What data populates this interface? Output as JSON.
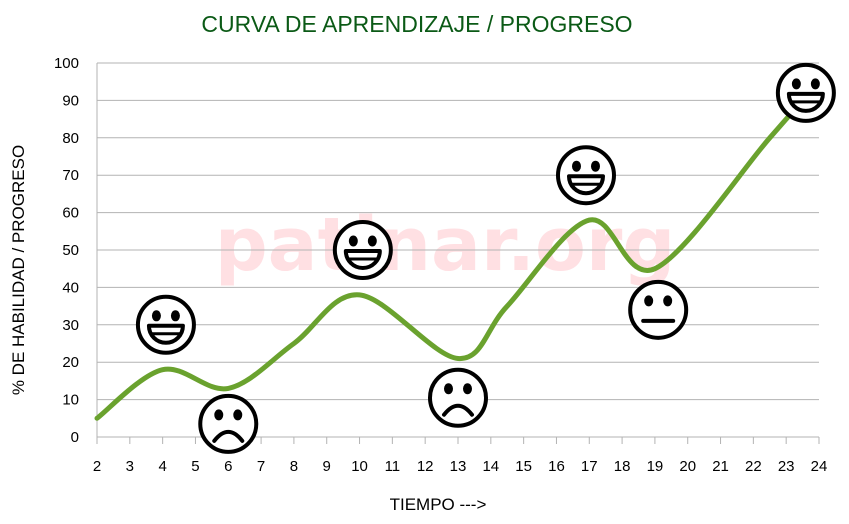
{
  "chart_data": {
    "type": "line",
    "title": "CURVA DE APRENDIZAJE / PROGRESO",
    "xlabel": "TIEMPO --->",
    "ylabel": "% DE HABILIDAD / PROGRESO",
    "x_ticks": [
      2,
      3,
      4,
      5,
      6,
      7,
      8,
      9,
      10,
      11,
      12,
      13,
      14,
      15,
      16,
      17,
      18,
      19,
      20,
      21,
      22,
      23,
      24
    ],
    "y_ticks": [
      0,
      10,
      20,
      30,
      40,
      50,
      60,
      70,
      80,
      90,
      100
    ],
    "xlim": [
      2,
      24
    ],
    "ylim": [
      0,
      100
    ],
    "grid": "horizontal",
    "line_color": "#6aa22e",
    "series": [
      {
        "points": [
          {
            "x": 2,
            "y": 5
          },
          {
            "x": 4,
            "y": 18
          },
          {
            "x": 6,
            "y": 13
          },
          {
            "x": 8,
            "y": 25
          },
          {
            "x": 10,
            "y": 38
          },
          {
            "x": 13,
            "y": 21
          },
          {
            "x": 14.5,
            "y": 35
          },
          {
            "x": 17,
            "y": 58
          },
          {
            "x": 19,
            "y": 45
          },
          {
            "x": 22.5,
            "y": 80
          },
          {
            "x": 24,
            "y": 95
          }
        ]
      }
    ],
    "annotations": [
      {
        "x": 4.1,
        "y": 30,
        "icon": "happy-face-icon"
      },
      {
        "x": 6,
        "y": 3.5,
        "icon": "sad-face-icon"
      },
      {
        "x": 10.1,
        "y": 50,
        "icon": "happy-face-icon"
      },
      {
        "x": 13,
        "y": 10.5,
        "icon": "sad-face-icon"
      },
      {
        "x": 16.9,
        "y": 70,
        "icon": "happy-face-icon"
      },
      {
        "x": 19.1,
        "y": 34,
        "icon": "neutral-face-icon"
      },
      {
        "x": 23.6,
        "y": 92,
        "icon": "happy-face-icon"
      }
    ],
    "watermark": "patinar.org"
  }
}
